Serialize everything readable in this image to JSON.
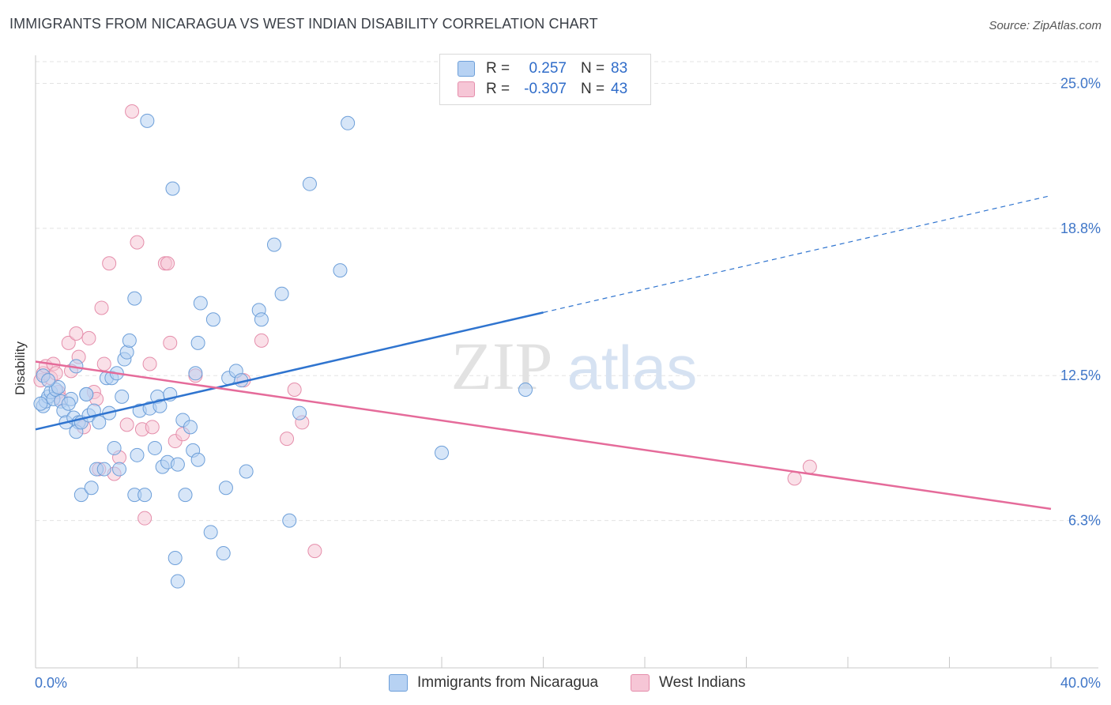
{
  "title": "IMMIGRANTS FROM NICARAGUA VS WEST INDIAN DISABILITY CORRELATION CHART",
  "source": "Source: ZipAtlas.com",
  "watermark": {
    "zip": "ZIP",
    "atlas": "atlas"
  },
  "legend": {
    "rows": [
      {
        "r_label": "R =",
        "r_value": "0.257",
        "n_label": "N =",
        "n_value": "83"
      },
      {
        "r_label": "R =",
        "r_value": "-0.307",
        "n_label": "N =",
        "n_value": "43"
      }
    ]
  },
  "bottom_legend": {
    "series1": "Immigrants from Nicaragua",
    "series2": "West Indians"
  },
  "colors": {
    "blue_fill": "#b7d2f3",
    "blue_stroke": "#6d9fd9",
    "blue_line": "#2f74cf",
    "pink_fill": "#f6c6d6",
    "pink_stroke": "#e58eab",
    "pink_line": "#e56b9a",
    "tick_label": "#3f76c8",
    "grid": "#e3e3e3"
  },
  "chart_data": {
    "type": "scatter",
    "title": "IMMIGRANTS FROM NICARAGUA VS WEST INDIAN DISABILITY CORRELATION CHART",
    "xlabel": "",
    "ylabel": "Disability",
    "xlim": [
      0,
      40
    ],
    "ylim": [
      0,
      26.2
    ],
    "x_tick_labels": [
      "0.0%",
      "40.0%"
    ],
    "y_ticks": [
      6.3,
      12.5,
      18.8,
      25.0
    ],
    "y_tick_labels": [
      "6.3%",
      "12.5%",
      "18.8%",
      "25.0%"
    ],
    "grid": true,
    "legend_position": "top-center",
    "series": [
      {
        "name": "Immigrants from Nicaragua",
        "r": 0.257,
        "n": 83,
        "trend": {
          "x": [
            0,
            20
          ],
          "y": [
            10.2,
            15.2
          ],
          "dashed_to": [
            40,
            20.2
          ]
        },
        "points": [
          [
            0.3,
            11.2
          ],
          [
            0.4,
            11.4
          ],
          [
            0.5,
            11.6
          ],
          [
            0.6,
            11.8
          ],
          [
            0.7,
            11.5
          ],
          [
            0.8,
            11.9
          ],
          [
            0.9,
            12.0
          ],
          [
            1.0,
            11.4
          ],
          [
            1.1,
            11.0
          ],
          [
            1.2,
            10.5
          ],
          [
            1.4,
            11.5
          ],
          [
            1.5,
            10.7
          ],
          [
            1.6,
            12.9
          ],
          [
            1.7,
            10.5
          ],
          [
            1.6,
            10.1
          ],
          [
            1.8,
            10.5
          ],
          [
            1.8,
            7.4
          ],
          [
            2.0,
            11.7
          ],
          [
            2.1,
            10.8
          ],
          [
            2.2,
            7.7
          ],
          [
            2.3,
            11.0
          ],
          [
            2.4,
            8.5
          ],
          [
            2.5,
            10.5
          ],
          [
            2.7,
            8.5
          ],
          [
            2.8,
            12.4
          ],
          [
            2.9,
            10.9
          ],
          [
            3.0,
            12.4
          ],
          [
            3.1,
            9.4
          ],
          [
            3.2,
            12.6
          ],
          [
            3.3,
            8.5
          ],
          [
            3.4,
            11.6
          ],
          [
            3.5,
            13.2
          ],
          [
            3.6,
            13.5
          ],
          [
            3.7,
            14.0
          ],
          [
            3.9,
            7.4
          ],
          [
            3.9,
            15.8
          ],
          [
            4.0,
            9.1
          ],
          [
            4.1,
            11.0
          ],
          [
            4.3,
            7.4
          ],
          [
            4.4,
            23.4
          ],
          [
            4.5,
            11.1
          ],
          [
            4.7,
            9.4
          ],
          [
            4.8,
            11.6
          ],
          [
            4.9,
            11.2
          ],
          [
            5.0,
            8.6
          ],
          [
            5.2,
            8.8
          ],
          [
            5.3,
            11.7
          ],
          [
            5.4,
            20.5
          ],
          [
            5.5,
            4.7
          ],
          [
            5.6,
            8.7
          ],
          [
            5.6,
            3.7
          ],
          [
            5.8,
            10.6
          ],
          [
            5.9,
            7.4
          ],
          [
            6.1,
            10.3
          ],
          [
            6.2,
            9.3
          ],
          [
            6.3,
            12.6
          ],
          [
            6.4,
            8.9
          ],
          [
            6.4,
            13.9
          ],
          [
            6.5,
            15.6
          ],
          [
            6.9,
            5.8
          ],
          [
            7.0,
            14.9
          ],
          [
            7.4,
            4.9
          ],
          [
            7.5,
            7.7
          ],
          [
            7.6,
            12.4
          ],
          [
            7.9,
            12.7
          ],
          [
            8.1,
            12.3
          ],
          [
            8.3,
            8.4
          ],
          [
            8.8,
            15.3
          ],
          [
            8.9,
            14.9
          ],
          [
            9.4,
            18.1
          ],
          [
            9.7,
            16.0
          ],
          [
            10.0,
            6.3
          ],
          [
            10.4,
            10.9
          ],
          [
            10.8,
            20.7
          ],
          [
            12.0,
            17.0
          ],
          [
            12.3,
            23.3
          ],
          [
            16.0,
            9.2
          ],
          [
            19.3,
            11.9
          ],
          [
            0.2,
            11.3
          ],
          [
            0.3,
            12.5
          ],
          [
            0.5,
            12.3
          ],
          [
            2.0,
            11.7
          ],
          [
            1.3,
            11.3
          ]
        ]
      },
      {
        "name": "West Indians",
        "r": -0.307,
        "n": 43,
        "trend": {
          "x": [
            0,
            40
          ],
          "y": [
            13.1,
            6.8
          ]
        },
        "points": [
          [
            0.2,
            12.3
          ],
          [
            0.3,
            12.6
          ],
          [
            0.4,
            12.9
          ],
          [
            0.6,
            12.4
          ],
          [
            0.7,
            13.0
          ],
          [
            0.8,
            12.6
          ],
          [
            0.9,
            11.8
          ],
          [
            1.0,
            11.5
          ],
          [
            1.3,
            13.9
          ],
          [
            1.4,
            12.7
          ],
          [
            1.6,
            14.3
          ],
          [
            1.7,
            13.3
          ],
          [
            1.9,
            10.3
          ],
          [
            2.1,
            14.1
          ],
          [
            2.3,
            11.8
          ],
          [
            2.4,
            11.5
          ],
          [
            2.5,
            8.5
          ],
          [
            2.6,
            15.4
          ],
          [
            2.7,
            13.0
          ],
          [
            2.9,
            17.3
          ],
          [
            3.1,
            8.3
          ],
          [
            3.3,
            9.0
          ],
          [
            3.6,
            10.4
          ],
          [
            3.8,
            23.8
          ],
          [
            4.0,
            18.2
          ],
          [
            4.2,
            10.2
          ],
          [
            4.3,
            6.4
          ],
          [
            4.5,
            13.0
          ],
          [
            4.6,
            10.3
          ],
          [
            5.1,
            17.3
          ],
          [
            5.2,
            17.3
          ],
          [
            5.3,
            13.9
          ],
          [
            5.5,
            9.7
          ],
          [
            5.8,
            10.0
          ],
          [
            6.3,
            12.5
          ],
          [
            8.2,
            12.3
          ],
          [
            8.9,
            14.0
          ],
          [
            9.9,
            9.8
          ],
          [
            10.2,
            11.9
          ],
          [
            10.5,
            10.5
          ],
          [
            11.0,
            5.0
          ],
          [
            29.9,
            8.1
          ],
          [
            30.5,
            8.6
          ]
        ]
      }
    ]
  }
}
